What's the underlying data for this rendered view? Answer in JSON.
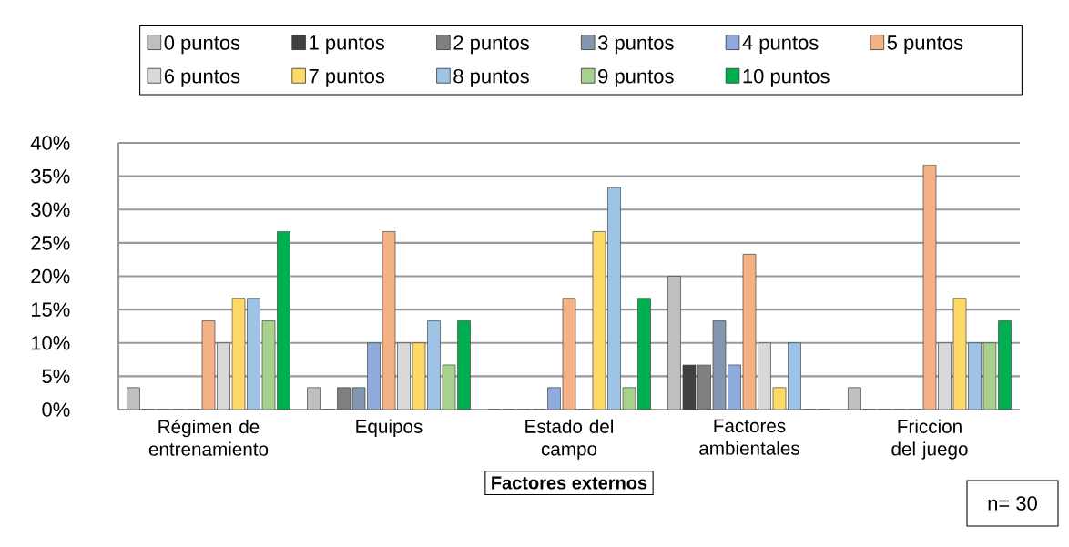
{
  "chart_data": {
    "type": "bar",
    "categories": [
      "Régimen de entrenamiento",
      "Equipos",
      "Estado del campo",
      "Factores ambientales",
      "Friccion del juego"
    ],
    "series": [
      {
        "name": "0 puntos",
        "color": "#bfbfbf",
        "values": [
          3.3,
          3.3,
          0,
          20,
          3.3
        ]
      },
      {
        "name": "1 puntos",
        "color": "#404040",
        "values": [
          0,
          0,
          0,
          6.7,
          0
        ]
      },
      {
        "name": "2 puntos",
        "color": "#7f7f7f",
        "values": [
          0,
          3.3,
          0,
          6.7,
          0
        ]
      },
      {
        "name": "3 puntos",
        "color": "#8497b0",
        "values": [
          0,
          3.3,
          0,
          13.3,
          0
        ]
      },
      {
        "name": "4 puntos",
        "color": "#8faadc",
        "values": [
          0,
          10,
          3.3,
          6.7,
          0
        ]
      },
      {
        "name": "5 puntos",
        "color": "#f4b183",
        "values": [
          13.3,
          26.7,
          16.7,
          23.3,
          36.7
        ]
      },
      {
        "name": "6 puntos",
        "color": "#d9d9d9",
        "values": [
          10,
          10,
          0,
          10,
          10
        ]
      },
      {
        "name": "7 puntos",
        "color": "#ffd966",
        "values": [
          16.7,
          10,
          26.7,
          3.3,
          16.7
        ]
      },
      {
        "name": "8 puntos",
        "color": "#9dc3e6",
        "values": [
          16.7,
          13.3,
          33.3,
          10,
          10
        ]
      },
      {
        "name": "9 puntos",
        "color": "#a9d18e",
        "values": [
          13.3,
          6.7,
          3.3,
          0,
          10
        ]
      },
      {
        "name": "10 puntos",
        "color": "#00b050",
        "values": [
          26.7,
          13.3,
          16.7,
          0,
          13.3
        ]
      }
    ],
    "xlabel": "Factores externos",
    "ylim": [
      0,
      40
    ],
    "yticks": [
      {
        "value": 0,
        "label": "0%"
      },
      {
        "value": 5,
        "label": "5%"
      },
      {
        "value": 10,
        "label": "10%"
      },
      {
        "value": 15,
        "label": "15%"
      },
      {
        "value": 20,
        "label": "20%"
      },
      {
        "value": 25,
        "label": "25%"
      },
      {
        "value": 30,
        "label": "30%"
      },
      {
        "value": 35,
        "label": "35%"
      },
      {
        "value": 40,
        "label": "40%"
      }
    ],
    "grid": "y",
    "legend": "top",
    "annotations": [
      "n= 30"
    ]
  }
}
